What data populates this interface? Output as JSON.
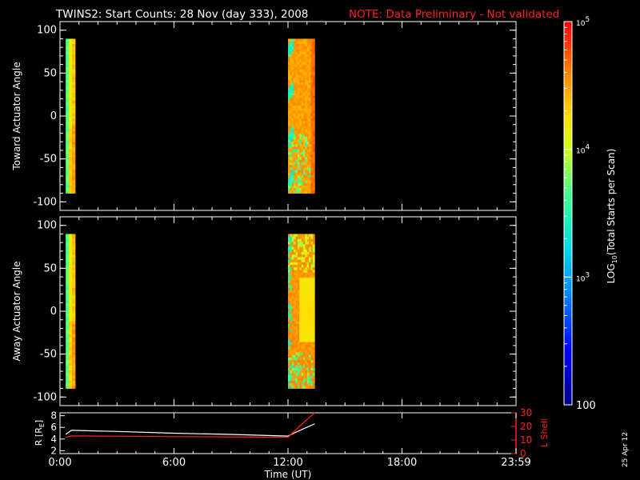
{
  "title": "TWINS2: Start Counts: 28 Nov (day 333), 2008",
  "note": "NOTE: Data Preliminary - Not validated",
  "date_stamp": "25 Apr 12",
  "colors": {
    "background": "#000000",
    "text": "#ffffff",
    "note": "#ff2020",
    "lshell": "#ff2020",
    "radius": "#ffffff"
  },
  "colorbar": {
    "label_prefix": "LOG",
    "label_sub": "10",
    "label_suffix": "(Total Starts per Scan)",
    "ticks": [
      {
        "base": "10",
        "exp": "5",
        "value": 100000
      },
      {
        "base": "10",
        "exp": "4",
        "value": 10000
      },
      {
        "base": "10",
        "exp": "3",
        "value": 1000
      },
      {
        "base": "100",
        "exp": "",
        "value": 100
      }
    ],
    "range": [
      100,
      100000
    ],
    "scale": "log"
  },
  "chart_data": [
    {
      "type": "heatmap",
      "ylabel": "Toward Actuator Angle",
      "ylim": [
        -110,
        110
      ],
      "yticks": [
        "100",
        "50",
        "0",
        "-50",
        "-100"
      ],
      "ytick_values": [
        100,
        50,
        0,
        -50,
        -100
      ],
      "xlim_hours": [
        0,
        24
      ],
      "data_range_deg": [
        -90,
        90
      ],
      "segments": [
        {
          "start": "00:18",
          "end": "00:48",
          "start_h": 0.3,
          "end_h": 0.8,
          "pattern": "early"
        },
        {
          "start": "12:00",
          "end": "13:24",
          "start_h": 12.0,
          "end_h": 13.4,
          "pattern": "toward"
        }
      ]
    },
    {
      "type": "heatmap",
      "ylabel": "Away Actuator Angle",
      "ylim": [
        -110,
        110
      ],
      "yticks": [
        "100",
        "50",
        "0",
        "-50",
        "-100"
      ],
      "ytick_values": [
        100,
        50,
        0,
        -50,
        -100
      ],
      "xlim_hours": [
        0,
        24
      ],
      "data_range_deg": [
        -90,
        90
      ],
      "segments": [
        {
          "start": "00:18",
          "end": "00:48",
          "start_h": 0.3,
          "end_h": 0.8,
          "pattern": "early"
        },
        {
          "start": "12:00",
          "end": "13:24",
          "start_h": 12.0,
          "end_h": 13.4,
          "pattern": "away"
        }
      ]
    },
    {
      "type": "line",
      "ylabel_left_main": "R [R",
      "ylabel_left_sub": "E",
      "ylabel_left_end": "]",
      "ylabel_right": "L Shell",
      "ylim_left": [
        1.5,
        8.5
      ],
      "ylim_right": [
        0,
        30
      ],
      "yticks_left": [
        "8",
        "6",
        "4",
        "2"
      ],
      "ytick_left_values": [
        8,
        6,
        4,
        2
      ],
      "yticks_right": [
        "30",
        "20",
        "10",
        "0"
      ],
      "ytick_right_values": [
        30,
        20,
        10,
        0
      ],
      "xlabel": "Time (UT)",
      "xticks": [
        "0:00",
        "6:00",
        "12:00",
        "18:00",
        "23:59"
      ],
      "xtick_hours": [
        0,
        6,
        12,
        18,
        24
      ],
      "series": [
        {
          "axis": "left",
          "color": "#ffffff",
          "x": [
            0.3,
            0.6,
            3,
            6,
            9,
            12,
            12.5,
            13.4
          ],
          "y": [
            4.8,
            5.5,
            5.3,
            5.0,
            4.8,
            4.5,
            5.3,
            6.6
          ]
        },
        {
          "axis": "right",
          "color": "#ff2020",
          "x": [
            0.3,
            0.6,
            3,
            6,
            9,
            12,
            12.6,
            13.4
          ],
          "y": [
            12,
            13,
            12.8,
            12.5,
            12.3,
            12.0,
            20,
            30
          ]
        }
      ]
    }
  ]
}
